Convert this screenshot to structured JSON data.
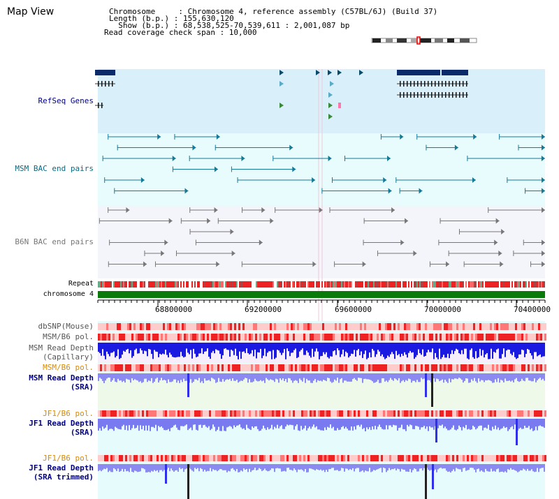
{
  "page": {
    "title": "Map View"
  },
  "header": {
    "lines": [
      "Chromosome     : Chromosome 4, reference assembly (C57BL/6J) (Build 37)",
      "Length (b.p.) : 155,630,120",
      "  Show (b.p.) : 68,538,525-70,539,611 : 2,001,087 bp",
      "Read coverage check span : 10,000"
    ]
  },
  "tracks": {
    "refseq": "RefSeq Genes",
    "msm_bac": "MSM BAC end pairs",
    "b6n_bac": "B6N BAC end pairs",
    "repeat": "Repeat",
    "chromosome": "chromosome 4",
    "dbsnp": "dbSNP(Mouse)",
    "msm_b6_pol_1": "MSM/B6 pol.",
    "msm_read_depth_cap_1": "MSM Read Depth",
    "msm_read_depth_cap_2": "(Capillary)",
    "msm_b6_pol_2": "MSM/B6 pol.",
    "msm_read_depth_sra_1": "MSM Read Depth",
    "msm_read_depth_sra_2": "(SRA)",
    "jf1_b6_pol_1": "JF1/B6 pol.",
    "jf1_read_depth_sra_1": "JF1 Read Depth",
    "jf1_read_depth_sra_2": "(SRA)",
    "jf1_b6_pol_2": "JF1/B6 pol.",
    "jf1_read_depth_trim_1": "JF1 Read Depth",
    "jf1_read_depth_trim_2": "(SRA trimmed)"
  },
  "axis": {
    "ticks": [
      "68800000",
      "69200000",
      "69600000",
      "70000000",
      "70400000"
    ]
  },
  "colors": {
    "refseq_bg": "#d9f0fb",
    "msm_bg": "#e8fbfd",
    "b6n_bg": "#f4f4fb",
    "coverage_bg": "#e6fbfb",
    "depth_blue": "#1414e0",
    "depth_lavender": "#8080f0",
    "pol_red": "#e33",
    "chromosome_green": "#0a7a0a",
    "label_navy": "#000080",
    "label_orange": "#d98a00",
    "label_teal": "#0a6a80"
  }
}
